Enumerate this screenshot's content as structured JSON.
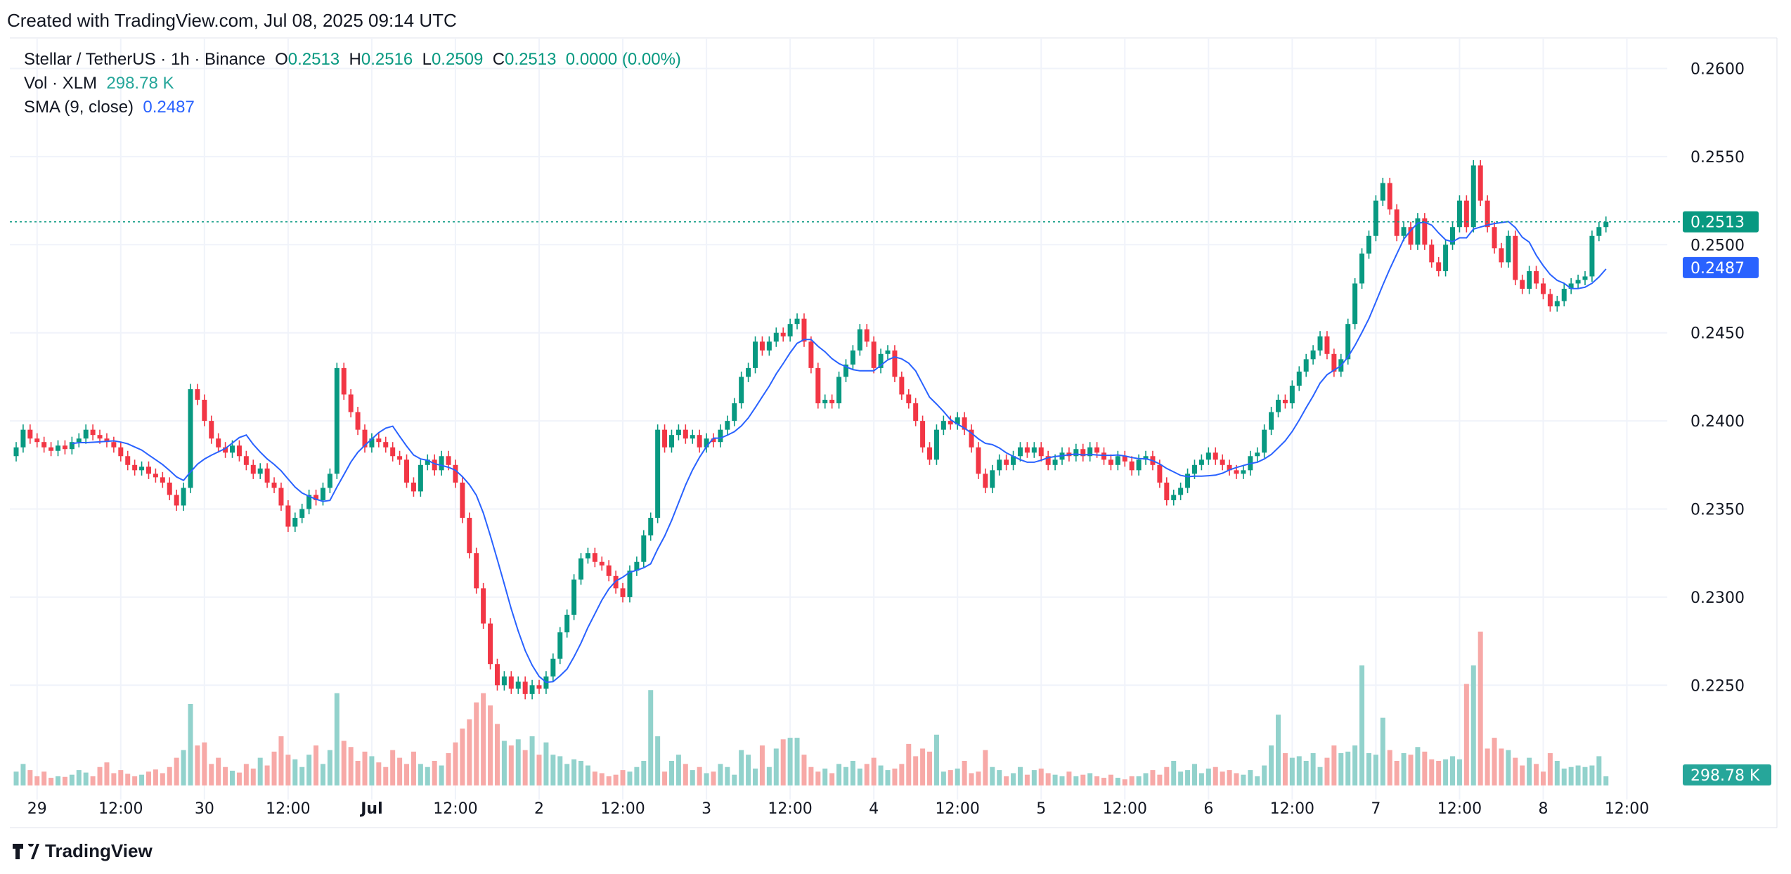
{
  "header": {
    "created": "Created with TradingView.com, Jul 08, 2025 09:14 UTC"
  },
  "legend": {
    "symbol": "Stellar / TetherUS · 1h · Binance",
    "o_label": "O",
    "o": "0.2513",
    "h_label": "H",
    "h": "0.2516",
    "l_label": "L",
    "l": "0.2509",
    "c_label": "C",
    "c": "0.2513",
    "change": "0.0000 (0.00%)",
    "vol_label": "Vol · XLM",
    "vol": "298.78 K",
    "sma_label": "SMA (9, close)",
    "sma": "0.2487"
  },
  "logo": {
    "text": "TradingView",
    "icon": "tradingview-logo-icon"
  },
  "colors": {
    "up": "#089981",
    "down": "#f23645",
    "sma": "#2962ff",
    "vol_up": "#92d2cc",
    "vol_down": "#f7a9a7",
    "grid": "#f0f3fa"
  },
  "chart_data": {
    "type": "candlestick",
    "interval": "1h",
    "first_candle": "2025-06-28T21:00",
    "price_axis": {
      "ticks": [
        "0.2600",
        "0.2550",
        "0.2500",
        "0.2450",
        "0.2400",
        "0.2350",
        "0.2300",
        "0.2250"
      ],
      "ylim": [
        0.218,
        0.2614
      ]
    },
    "last_price": {
      "value": 0.2513,
      "label": "0.2513"
    },
    "sma_last": {
      "value": 0.2487,
      "label": "0.2487"
    },
    "volume_last": {
      "label": "298.78 K"
    },
    "sma_period": 9,
    "time_axis": [
      {
        "t": "2025-06-29T00:00",
        "label": "29"
      },
      {
        "t": "2025-06-29T12:00",
        "label": "12:00"
      },
      {
        "t": "2025-06-30T00:00",
        "label": "30"
      },
      {
        "t": "2025-06-30T12:00",
        "label": "12:00"
      },
      {
        "t": "2025-07-01T00:00",
        "label": "Jul"
      },
      {
        "t": "2025-07-01T12:00",
        "label": "12:00"
      },
      {
        "t": "2025-07-02T00:00",
        "label": "2"
      },
      {
        "t": "2025-07-02T12:00",
        "label": "12:00"
      },
      {
        "t": "2025-07-03T00:00",
        "label": "3"
      },
      {
        "t": "2025-07-03T12:00",
        "label": "12:00"
      },
      {
        "t": "2025-07-04T00:00",
        "label": "4"
      },
      {
        "t": "2025-07-04T12:00",
        "label": "12:00"
      },
      {
        "t": "2025-07-05T00:00",
        "label": "5"
      },
      {
        "t": "2025-07-05T12:00",
        "label": "12:00"
      },
      {
        "t": "2025-07-06T00:00",
        "label": "6"
      },
      {
        "t": "2025-07-06T12:00",
        "label": "12:00"
      },
      {
        "t": "2025-07-07T00:00",
        "label": "7"
      },
      {
        "t": "2025-07-07T12:00",
        "label": "12:00"
      },
      {
        "t": "2025-07-08T00:00",
        "label": "8"
      },
      {
        "t": "2025-07-08T12:00",
        "label": "12:00"
      }
    ],
    "first_open": 0.238,
    "close": [
      0.2385,
      0.2395,
      0.239,
      0.2388,
      0.2385,
      0.2383,
      0.2386,
      0.2384,
      0.2388,
      0.239,
      0.2395,
      0.2392,
      0.239,
      0.2388,
      0.2385,
      0.238,
      0.2375,
      0.2372,
      0.2374,
      0.237,
      0.2368,
      0.2365,
      0.2358,
      0.2352,
      0.2362,
      0.2418,
      0.2412,
      0.24,
      0.239,
      0.2385,
      0.2382,
      0.2386,
      0.238,
      0.2375,
      0.237,
      0.2373,
      0.2365,
      0.2362,
      0.2352,
      0.234,
      0.2345,
      0.235,
      0.2358,
      0.2355,
      0.2362,
      0.237,
      0.243,
      0.2415,
      0.2405,
      0.2395,
      0.2385,
      0.239,
      0.2388,
      0.2385,
      0.238,
      0.2378,
      0.2365,
      0.236,
      0.2375,
      0.2378,
      0.2372,
      0.238,
      0.2375,
      0.2365,
      0.2345,
      0.2325,
      0.2305,
      0.2285,
      0.2262,
      0.225,
      0.2255,
      0.2248,
      0.2252,
      0.2245,
      0.225,
      0.2248,
      0.2255,
      0.2265,
      0.228,
      0.229,
      0.231,
      0.2322,
      0.2325,
      0.232,
      0.2318,
      0.2312,
      0.2305,
      0.23,
      0.2315,
      0.232,
      0.2335,
      0.2345,
      0.2395,
      0.2385,
      0.2392,
      0.2395,
      0.239,
      0.2392,
      0.2385,
      0.239,
      0.2388,
      0.2395,
      0.24,
      0.241,
      0.2425,
      0.243,
      0.2445,
      0.244,
      0.2445,
      0.245,
      0.2448,
      0.2455,
      0.2458,
      0.2445,
      0.243,
      0.241,
      0.2412,
      0.241,
      0.2425,
      0.2432,
      0.244,
      0.2452,
      0.2445,
      0.243,
      0.2438,
      0.244,
      0.2425,
      0.2415,
      0.241,
      0.24,
      0.2385,
      0.2378,
      0.2395,
      0.24,
      0.2398,
      0.2402,
      0.2395,
      0.2385,
      0.237,
      0.2362,
      0.2372,
      0.2378,
      0.2375,
      0.238,
      0.2385,
      0.2382,
      0.2385,
      0.238,
      0.2375,
      0.2378,
      0.2382,
      0.238,
      0.2384,
      0.238,
      0.2385,
      0.2382,
      0.2378,
      0.2375,
      0.238,
      0.2377,
      0.2372,
      0.2378,
      0.238,
      0.2375,
      0.2365,
      0.2355,
      0.2358,
      0.2362,
      0.237,
      0.2375,
      0.2378,
      0.2382,
      0.2378,
      0.2375,
      0.2372,
      0.237,
      0.2372,
      0.238,
      0.2382,
      0.2395,
      0.2405,
      0.2412,
      0.241,
      0.242,
      0.2428,
      0.2435,
      0.244,
      0.2448,
      0.2438,
      0.2428,
      0.2435,
      0.2455,
      0.2478,
      0.2495,
      0.2505,
      0.2525,
      0.2535,
      0.252,
      0.2505,
      0.251,
      0.25,
      0.2515,
      0.25,
      0.249,
      0.2485,
      0.25,
      0.251,
      0.2525,
      0.251,
      0.2545,
      0.2525,
      0.251,
      0.2498,
      0.249,
      0.2505,
      0.248,
      0.2475,
      0.2485,
      0.2478,
      0.2472,
      0.2465,
      0.2468,
      0.2475,
      0.2478,
      0.248,
      0.2482,
      0.2505,
      0.251,
      0.2513
    ],
    "volume_k": [
      450,
      700,
      500,
      300,
      450,
      250,
      300,
      280,
      350,
      500,
      420,
      300,
      600,
      750,
      400,
      500,
      380,
      300,
      350,
      450,
      520,
      400,
      600,
      900,
      1150,
      2650,
      1300,
      1400,
      700,
      900,
      600,
      480,
      420,
      700,
      550,
      900,
      650,
      1100,
      1600,
      1000,
      850,
      600,
      1000,
      1300,
      700,
      1150,
      3000,
      1450,
      1250,
      800,
      1100,
      950,
      750,
      600,
      1150,
      900,
      700,
      1100,
      700,
      600,
      800,
      650,
      1050,
      1400,
      1850,
      2150,
      2700,
      3000,
      2600,
      2000,
      1450,
      1300,
      1500,
      1150,
      1600,
      1000,
      1400,
      1000,
      950,
      700,
      850,
      800,
      650,
      450,
      400,
      300,
      350,
      500,
      450,
      600,
      800,
      3100,
      1600,
      450,
      800,
      1000,
      700,
      500,
      600,
      400,
      450,
      700,
      600,
      350,
      1150,
      1000,
      550,
      1300,
      600,
      1200,
      1500,
      1550,
      1550,
      1000,
      600,
      450,
      550,
      400,
      700,
      600,
      800,
      550,
      700,
      900,
      650,
      500,
      550,
      700,
      1350,
      950,
      1200,
      1100,
      1650,
      450,
      500,
      550,
      800,
      400,
      450,
      1150,
      600,
      500,
      300,
      400,
      600,
      350,
      500,
      550,
      400,
      350,
      300,
      450,
      300,
      350,
      400,
      300,
      250,
      350,
      250,
      200,
      300,
      300,
      400,
      500,
      350,
      600,
      800,
      450,
      500,
      700,
      400,
      550,
      600,
      450,
      500,
      400,
      350,
      500,
      300,
      650,
      1300,
      2300,
      1050,
      900,
      950,
      800,
      1050,
      600,
      900,
      1300,
      1050,
      1100,
      1300,
      3900,
      1050,
      1000,
      2200,
      1150,
      800,
      1050,
      1000,
      1250,
      1100,
      850,
      800,
      850,
      950,
      850,
      3300,
      3900,
      5000,
      1200,
      1550,
      1200,
      1150,
      900,
      650,
      900,
      700,
      450,
      1050,
      800,
      550,
      600,
      650,
      600,
      650,
      950,
      298.78
    ]
  }
}
